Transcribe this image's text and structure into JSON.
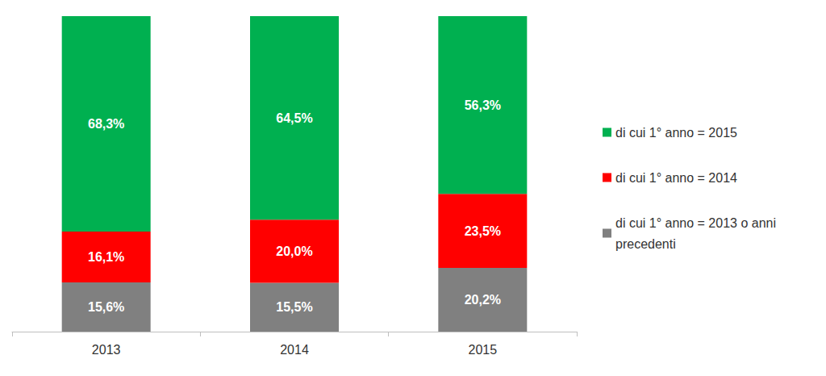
{
  "chart_data": {
    "type": "bar",
    "stacked": true,
    "categories": [
      "2013",
      "2014",
      "2015"
    ],
    "ylim": [
      0,
      100
    ],
    "tick_labels": "x",
    "grid": false,
    "legend": "right",
    "data_labels": true,
    "series": [
      {
        "name": "di cui 1° anno = 2015",
        "color": "#00b050",
        "values": [
          68.3,
          64.5,
          56.3
        ],
        "value_labels": [
          "68,3%",
          "64,5%",
          "56,3%"
        ]
      },
      {
        "name": "di cui 1° anno = 2014",
        "color": "#ff0000",
        "values": [
          16.1,
          20.0,
          23.5
        ],
        "value_labels": [
          "16,1%",
          "20,0%",
          "23,5%"
        ]
      },
      {
        "name": "di cui 1° anno = 2013 o anni precedenti",
        "color": "#808080",
        "values": [
          15.6,
          15.5,
          20.2
        ],
        "value_labels": [
          "15,6%",
          "15,5%",
          "20,2%"
        ]
      }
    ]
  }
}
